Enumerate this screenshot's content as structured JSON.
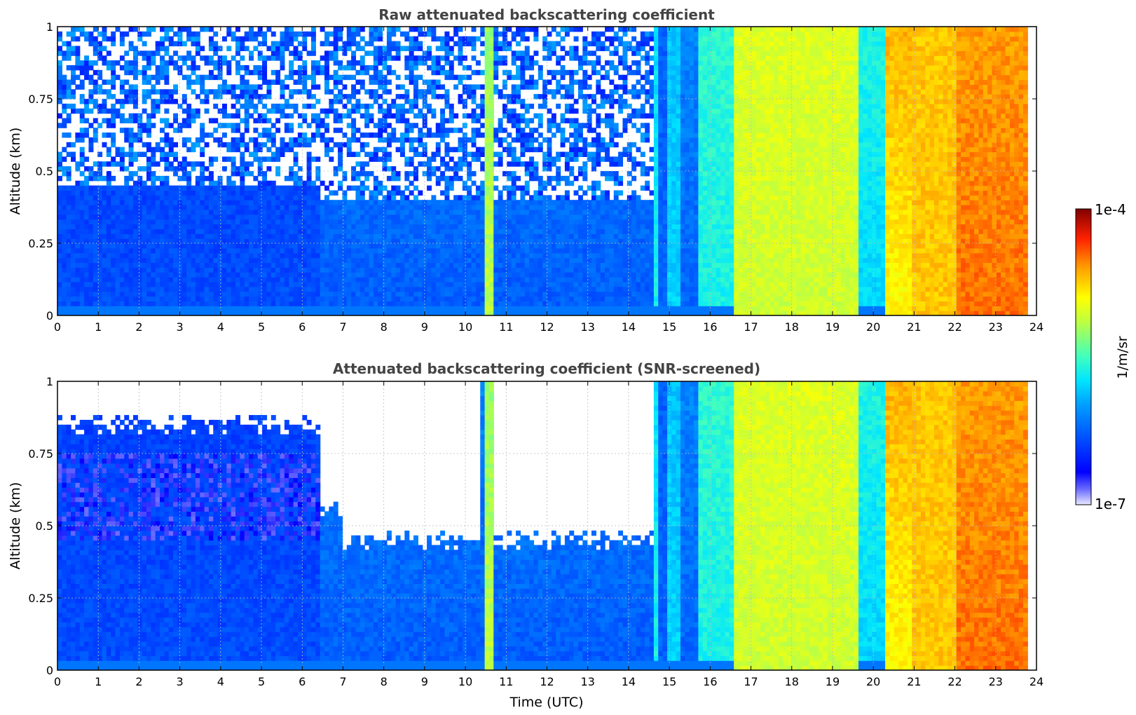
{
  "chart_data": [
    {
      "type": "heatmap",
      "title": "Raw attenuated backscattering coefficient",
      "xlabel": "",
      "ylabel": "Altitude (km)",
      "xlim": [
        0,
        24
      ],
      "ylim": [
        0,
        1
      ],
      "x_ticks": [
        "0",
        "1",
        "2",
        "3",
        "4",
        "5",
        "6",
        "7",
        "8",
        "9",
        "10",
        "11",
        "12",
        "13",
        "14",
        "15",
        "16",
        "17",
        "18",
        "19",
        "20",
        "21",
        "22",
        "23",
        "24"
      ],
      "y_ticks": [
        "0",
        "0.25",
        "0.5",
        "0.75",
        "1"
      ],
      "grid": true,
      "time_segments": [
        {
          "start": 0.0,
          "end": 6.4,
          "level_low": 0.22,
          "level_high": 0.2,
          "noise_top": 0.45
        },
        {
          "start": 6.4,
          "end": 10.45,
          "level_low": 0.24,
          "level_high": 0.3,
          "noise_top": 0.4
        },
        {
          "start": 10.45,
          "end": 10.65,
          "level_low": 0.62,
          "level_high": 0.58,
          "noise_top": 1.0
        },
        {
          "start": 10.65,
          "end": 14.6,
          "level_low": 0.24,
          "level_high": 0.3,
          "noise_top": 0.4
        },
        {
          "start": 14.6,
          "end": 14.75,
          "level_low": 0.45,
          "level_high": 0.42,
          "noise_top": 1.0
        },
        {
          "start": 14.75,
          "end": 14.9,
          "level_low": 0.25,
          "level_high": 0.25,
          "noise_top": 1.0
        },
        {
          "start": 14.9,
          "end": 15.3,
          "level_low": 0.4,
          "level_high": 0.38,
          "noise_top": 1.0
        },
        {
          "start": 15.3,
          "end": 15.7,
          "level_low": 0.25,
          "level_high": 0.3,
          "noise_top": 1.0
        },
        {
          "start": 15.7,
          "end": 16.6,
          "level_low": 0.45,
          "level_high": 0.48,
          "noise_top": 1.0
        },
        {
          "start": 16.6,
          "end": 19.6,
          "level_low": 0.64,
          "level_high": 0.66,
          "noise_top": 1.0
        },
        {
          "start": 19.6,
          "end": 20.3,
          "level_low": 0.4,
          "level_high": 0.46,
          "noise_top": 1.0
        },
        {
          "start": 20.3,
          "end": 21.0,
          "level_low": 0.7,
          "level_high": 0.78,
          "noise_top": 1.0
        },
        {
          "start": 21.0,
          "end": 22.0,
          "level_low": 0.76,
          "level_high": 0.76,
          "noise_top": 1.0
        },
        {
          "start": 22.0,
          "end": 23.8,
          "level_low": 0.84,
          "level_high": 0.8,
          "noise_top": 1.0
        }
      ]
    },
    {
      "type": "heatmap",
      "title": "Attenuated backscattering coefficient (SNR-screened)",
      "xlabel": "Time (UTC)",
      "ylabel": "Altitude (km)",
      "xlim": [
        0,
        24
      ],
      "ylim": [
        0,
        1
      ],
      "x_ticks": [
        "0",
        "1",
        "2",
        "3",
        "4",
        "5",
        "6",
        "7",
        "8",
        "9",
        "10",
        "11",
        "12",
        "13",
        "14",
        "15",
        "16",
        "17",
        "18",
        "19",
        "20",
        "21",
        "22",
        "23",
        "24"
      ],
      "y_ticks": [
        "0",
        "0.25",
        "0.5",
        "0.75",
        "1"
      ],
      "grid": true,
      "screened_top": [
        {
          "start": 0.0,
          "end": 6.4,
          "altitude": 0.85
        },
        {
          "start": 6.4,
          "end": 7.0,
          "altitude": 0.55
        },
        {
          "start": 7.0,
          "end": 10.4,
          "altitude": 0.45
        },
        {
          "start": 10.7,
          "end": 14.6,
          "altitude": 0.45
        }
      ]
    }
  ],
  "colorbar": {
    "label": "1/m/sr",
    "max_label": "1e-4",
    "min_label": "1e-7",
    "colormap": "jet"
  },
  "colors": {
    "axis": "#000000",
    "title": "#444444",
    "grid": "#bbbbbb"
  }
}
